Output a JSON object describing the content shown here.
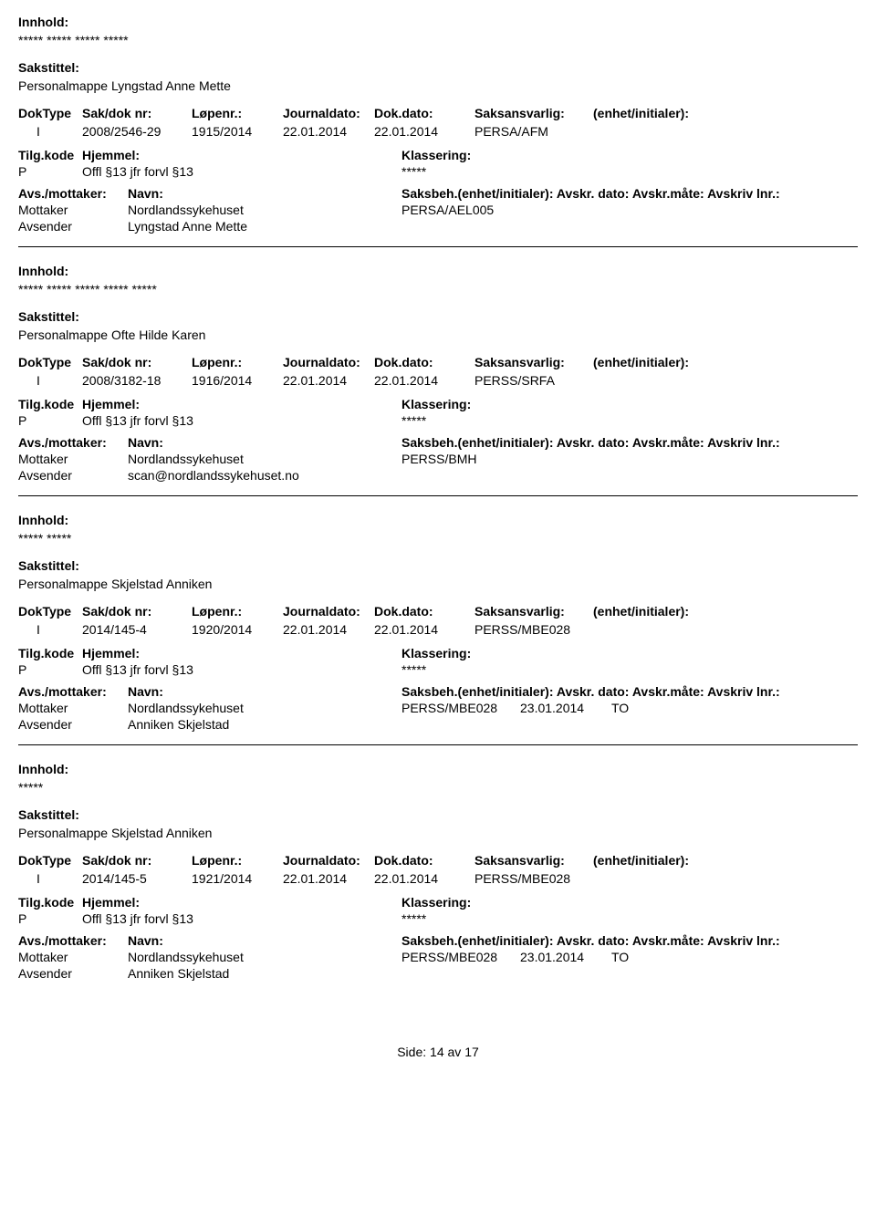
{
  "labels": {
    "innhold": "Innhold:",
    "sakstittel": "Sakstittel:",
    "doktype": "DokType",
    "sakdoknr": "Sak/dok nr:",
    "lopenr": "Løpenr.:",
    "journaldato": "Journaldato:",
    "dokdato": "Dok.dato:",
    "saksansvarlig": "Saksansvarlig:",
    "enhetinit": "(enhet/initialer):",
    "tilgkode": "Tilg.kode",
    "hjemmel": "Hjemmel:",
    "klassering": "Klassering:",
    "avsmottaker": "Avs./mottaker:",
    "navn": "Navn:",
    "saksbeh": "Saksbeh.(enhet/initialer):",
    "avskrdato": "Avskr. dato:",
    "avskrmate": "Avskr.måte:",
    "avskrivlnr": "Avskriv lnr.:",
    "mottaker": "Mottaker",
    "avsender": "Avsender",
    "side": "Side:",
    "av": "av"
  },
  "page": {
    "current": "14",
    "total": "17"
  },
  "records": [
    {
      "innhold_stars": "***** ***** ***** *****",
      "sakstittel": "Personalmappe Lyngstad Anne Mette",
      "doktype": "I",
      "sakdoknr": "2008/2546-29",
      "lopenr": "1915/2014",
      "journaldato": "22.01.2014",
      "dokdato": "22.01.2014",
      "saksansvarlig": "PERSA/AFM",
      "tilgkode": "P",
      "hjemmel": "Offl §13 jfr forvl §13",
      "klassering": "*****",
      "saksbeh": "PERSA/AEL005",
      "avskrdato": "",
      "avskrmate": "",
      "mottaker_navn": "Nordlandssykehuset",
      "avsender_navn": "Lyngstad Anne Mette"
    },
    {
      "innhold_stars": "***** ***** ***** ***** *****",
      "sakstittel": "Personalmappe Ofte Hilde Karen",
      "doktype": "I",
      "sakdoknr": "2008/3182-18",
      "lopenr": "1916/2014",
      "journaldato": "22.01.2014",
      "dokdato": "22.01.2014",
      "saksansvarlig": "PERSS/SRFA",
      "tilgkode": "P",
      "hjemmel": "Offl §13 jfr forvl §13",
      "klassering": "*****",
      "saksbeh": "PERSS/BMH",
      "avskrdato": "",
      "avskrmate": "",
      "mottaker_navn": "Nordlandssykehuset",
      "avsender_navn": "scan@nordlandssykehuset.no"
    },
    {
      "innhold_stars": "***** *****",
      "sakstittel": "Personalmappe Skjelstad Anniken",
      "doktype": "I",
      "sakdoknr": "2014/145-4",
      "lopenr": "1920/2014",
      "journaldato": "22.01.2014",
      "dokdato": "22.01.2014",
      "saksansvarlig": "PERSS/MBE028",
      "tilgkode": "P",
      "hjemmel": "Offl §13 jfr forvl §13",
      "klassering": "*****",
      "saksbeh": "PERSS/MBE028",
      "avskrdato": "23.01.2014",
      "avskrmate": "TO",
      "mottaker_navn": "Nordlandssykehuset",
      "avsender_navn": "Anniken Skjelstad"
    },
    {
      "innhold_stars": "*****",
      "sakstittel": "Personalmappe Skjelstad Anniken",
      "doktype": "I",
      "sakdoknr": "2014/145-5",
      "lopenr": "1921/2014",
      "journaldato": "22.01.2014",
      "dokdato": "22.01.2014",
      "saksansvarlig": "PERSS/MBE028",
      "tilgkode": "P",
      "hjemmel": "Offl §13 jfr forvl §13",
      "klassering": "*****",
      "saksbeh": "PERSS/MBE028",
      "avskrdato": "23.01.2014",
      "avskrmate": "TO",
      "mottaker_navn": "Nordlandssykehuset",
      "avsender_navn": "Anniken Skjelstad"
    }
  ]
}
